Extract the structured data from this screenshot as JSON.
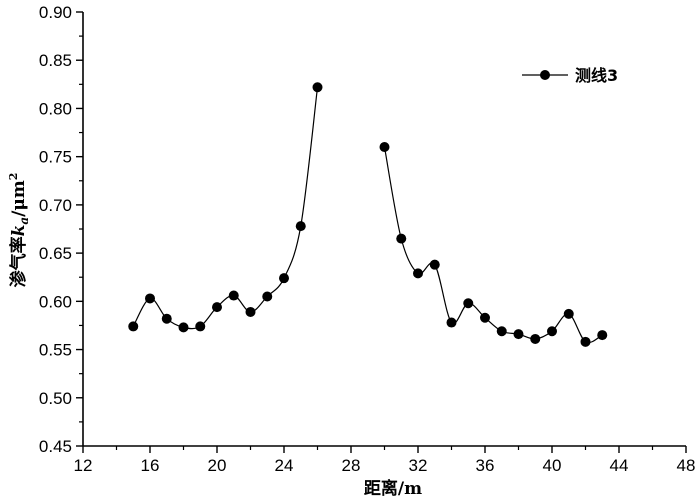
{
  "chart_data": {
    "type": "line",
    "xlabel": "距离/m",
    "ylabel": "渗气率k_a/μm²",
    "ylabel_parts": {
      "main": "渗气率",
      "symbol": "k",
      "subscript": "a",
      "unit": "/μm",
      "superscript": "2"
    },
    "xlim": [
      12,
      48
    ],
    "ylim": [
      0.45,
      0.9
    ],
    "x_ticks": [
      "12",
      "16",
      "20",
      "24",
      "28",
      "32",
      "36",
      "40",
      "44",
      "48"
    ],
    "y_ticks": [
      "0.45",
      "0.50",
      "0.55",
      "0.60",
      "0.65",
      "0.70",
      "0.75",
      "0.80",
      "0.85",
      "0.90"
    ],
    "legend_position": "top-right",
    "grid": false,
    "series": [
      {
        "name": "测线3",
        "color": "#000000",
        "marker": "circle",
        "segments": [
          [
            [
              15,
              0.574
            ],
            [
              16,
              0.603
            ],
            [
              17,
              0.582
            ],
            [
              18,
              0.573
            ],
            [
              19,
              0.574
            ],
            [
              20,
              0.594
            ],
            [
              21,
              0.606
            ],
            [
              22,
              0.589
            ],
            [
              23,
              0.605
            ],
            [
              24,
              0.624
            ],
            [
              25,
              0.678
            ],
            [
              26,
              0.822
            ]
          ],
          [
            [
              30,
              0.76
            ],
            [
              31,
              0.665
            ],
            [
              32,
              0.629
            ],
            [
              33,
              0.638
            ],
            [
              34,
              0.578
            ],
            [
              35,
              0.598
            ],
            [
              36,
              0.583
            ],
            [
              37,
              0.569
            ],
            [
              38,
              0.566
            ],
            [
              39,
              0.561
            ],
            [
              40,
              0.569
            ],
            [
              41,
              0.587
            ],
            [
              42,
              0.558
            ],
            [
              43,
              0.565
            ]
          ]
        ]
      }
    ]
  }
}
